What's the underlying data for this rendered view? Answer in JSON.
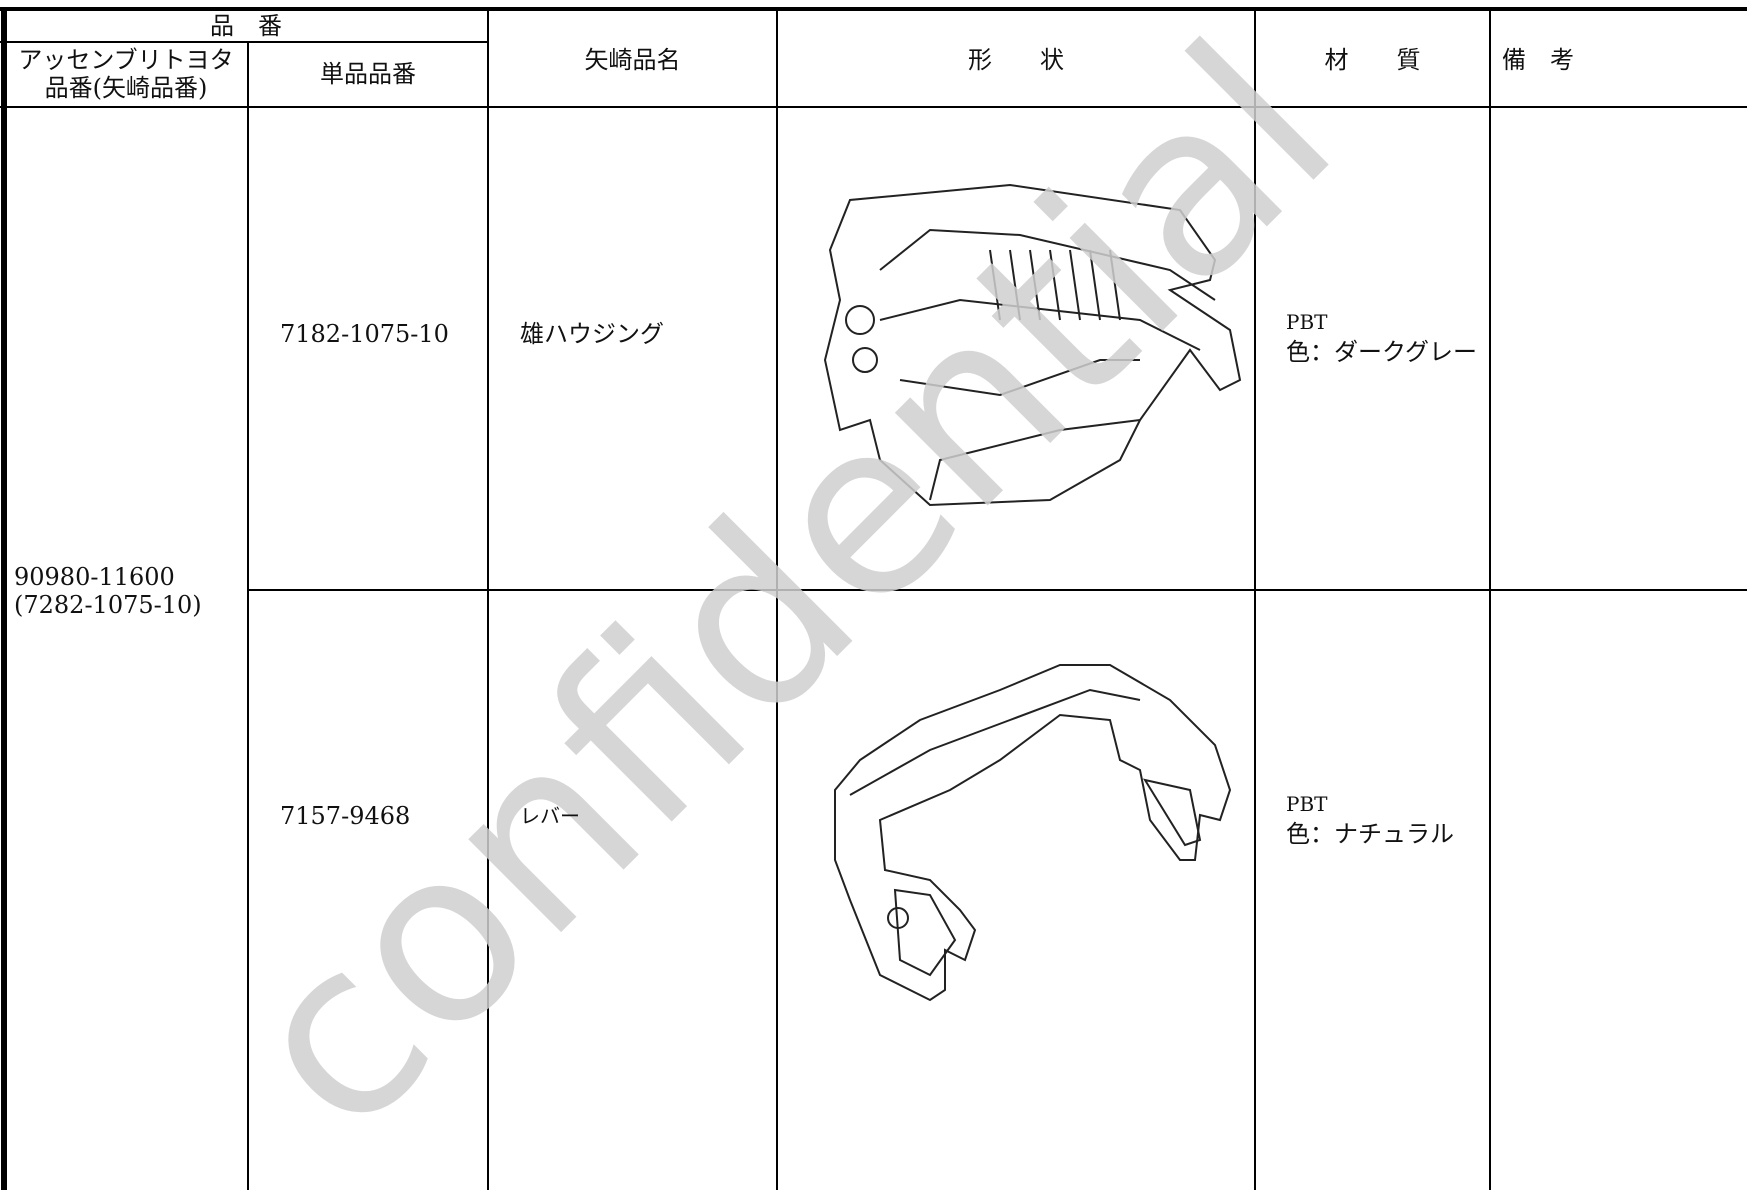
{
  "header": {
    "part_number": "品　番",
    "assembly_number": [
      "アッセンブリトヨタ",
      "品番(矢崎品番)"
    ],
    "single_number": "単品品番",
    "yazaki_name": "矢崎品名",
    "shape": "形　　状",
    "material": "材　　質",
    "remarks": "備　考"
  },
  "assembly": {
    "number": "90980-11600",
    "yazaki_number": "(7282-1075-10)"
  },
  "rows": [
    {
      "single_number": "7182-1075-10",
      "yazaki_name": "雄ハウジング",
      "material": [
        "PBT",
        "色：ダークグレー"
      ]
    },
    {
      "single_number": "7157-9468",
      "yazaki_name": "レバー",
      "material": [
        "PBT",
        "色：ナチュラル"
      ]
    }
  ],
  "watermark": "confidential"
}
